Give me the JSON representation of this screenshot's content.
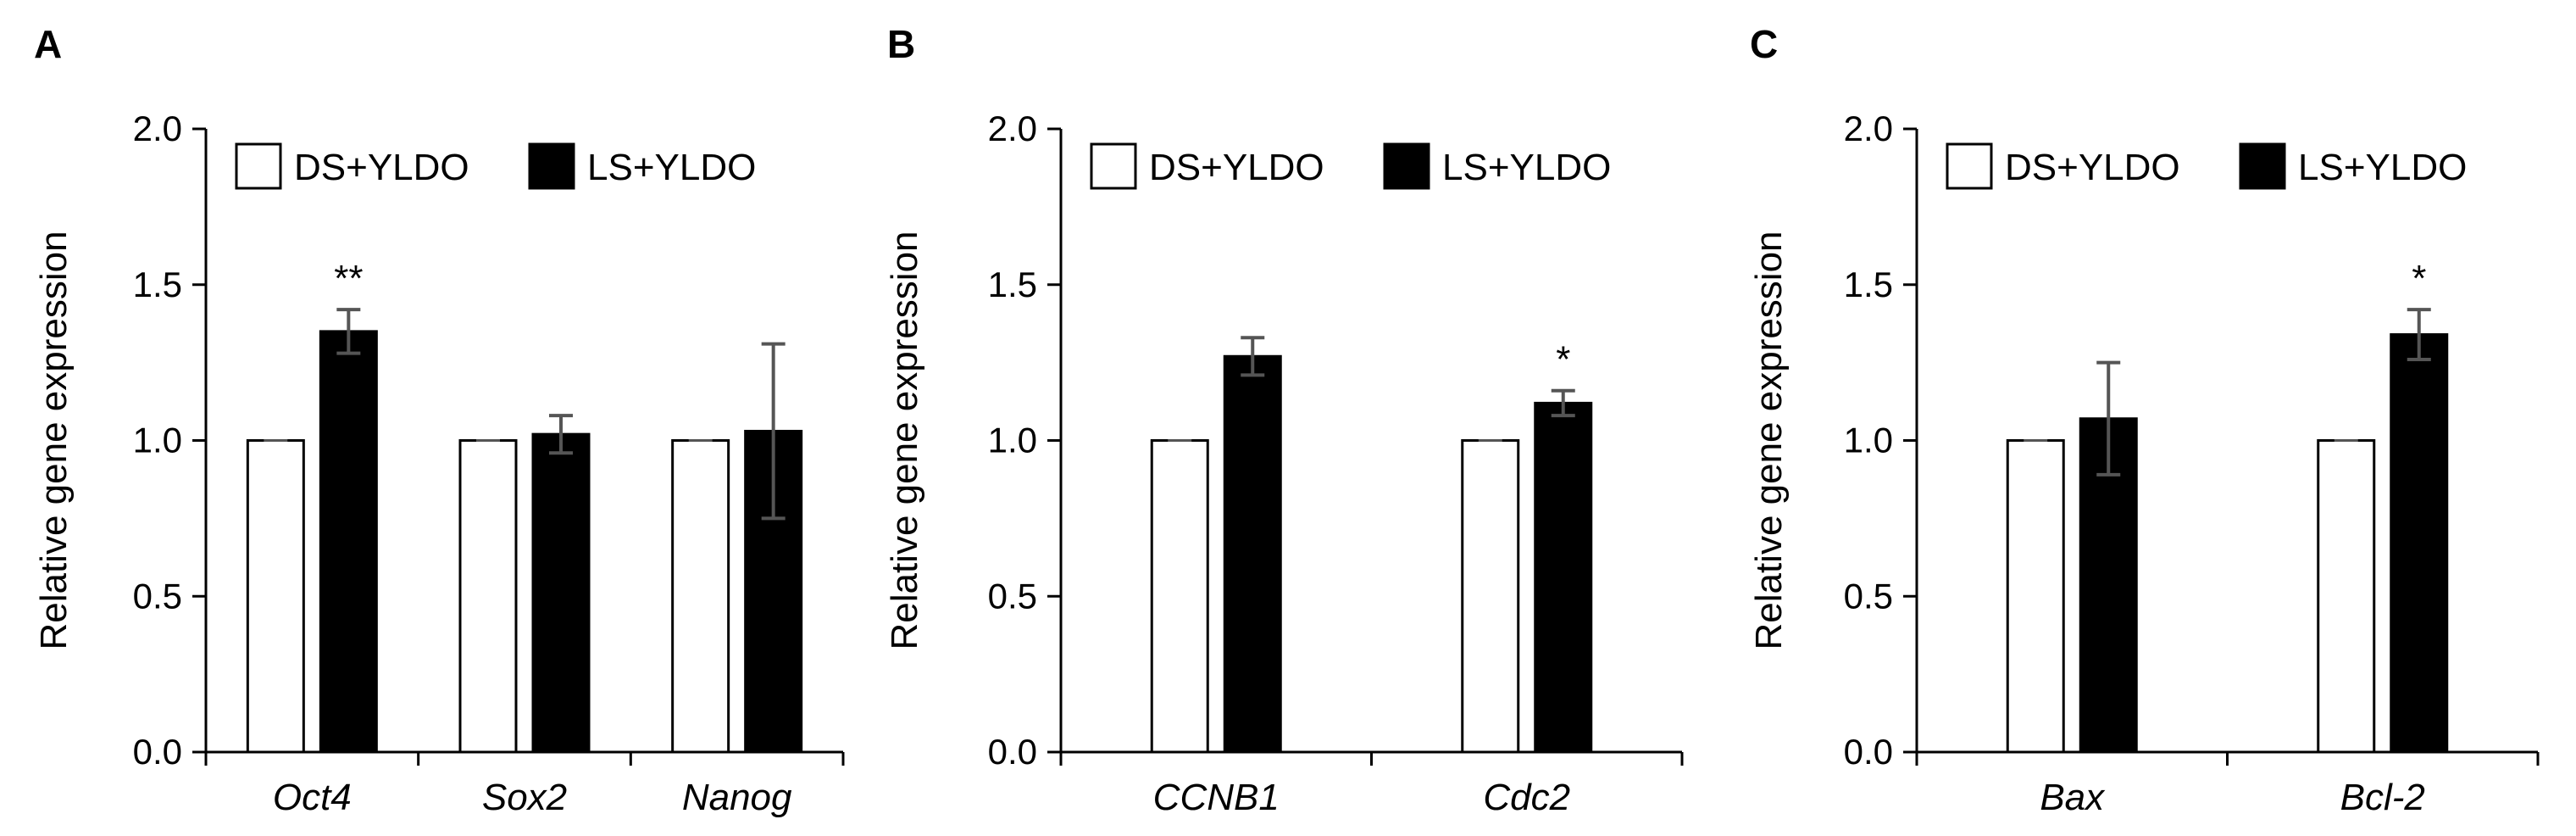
{
  "chart_data": [
    {
      "type": "bar",
      "panel": "A",
      "ylabel": "Relative gene expression",
      "ylim": [
        0,
        2.0
      ],
      "yticks": [
        "0.0",
        "0.5",
        "1.0",
        "1.5",
        "2.0"
      ],
      "legend_position": "top",
      "categories": [
        "Oct4",
        "Sox2",
        "Nanog"
      ],
      "series": [
        {
          "name": "DS+YLDO",
          "color": "#ffffff",
          "values": [
            1.0,
            1.0,
            1.0
          ],
          "errors": [
            0.0,
            0.0,
            0.0
          ]
        },
        {
          "name": "LS+YLDO",
          "color": "#000000",
          "values": [
            1.35,
            1.02,
            1.03
          ],
          "errors": [
            0.07,
            0.06,
            0.28
          ]
        }
      ],
      "annotations": [
        {
          "category_index": 0,
          "series_index": 1,
          "text": "**"
        }
      ]
    },
    {
      "type": "bar",
      "panel": "B",
      "ylabel": "Relative gene expression",
      "ylim": [
        0,
        2.0
      ],
      "yticks": [
        "0.0",
        "0.5",
        "1.0",
        "1.5",
        "2.0"
      ],
      "legend_position": "top",
      "categories": [
        "CCNB1",
        "Cdc2"
      ],
      "series": [
        {
          "name": "DS+YLDO",
          "color": "#ffffff",
          "values": [
            1.0,
            1.0
          ],
          "errors": [
            0.0,
            0.0
          ]
        },
        {
          "name": "LS+YLDO",
          "color": "#000000",
          "values": [
            1.27,
            1.12
          ],
          "errors": [
            0.06,
            0.04
          ]
        }
      ],
      "annotations": [
        {
          "category_index": 1,
          "series_index": 1,
          "text": "*"
        }
      ]
    },
    {
      "type": "bar",
      "panel": "C",
      "ylabel": "Relative gene expression",
      "ylim": [
        0,
        2.0
      ],
      "yticks": [
        "0.0",
        "0.5",
        "1.0",
        "1.5",
        "2.0"
      ],
      "legend_position": "top",
      "categories": [
        "Bax",
        "Bcl-2"
      ],
      "series": [
        {
          "name": "DS+YLDO",
          "color": "#ffffff",
          "values": [
            1.0,
            1.0
          ],
          "errors": [
            0.0,
            0.0
          ]
        },
        {
          "name": "LS+YLDO",
          "color": "#000000",
          "values": [
            1.07,
            1.34
          ],
          "errors": [
            0.18,
            0.08
          ]
        }
      ],
      "annotations": [
        {
          "category_index": 1,
          "series_index": 1,
          "text": "*"
        }
      ]
    }
  ]
}
